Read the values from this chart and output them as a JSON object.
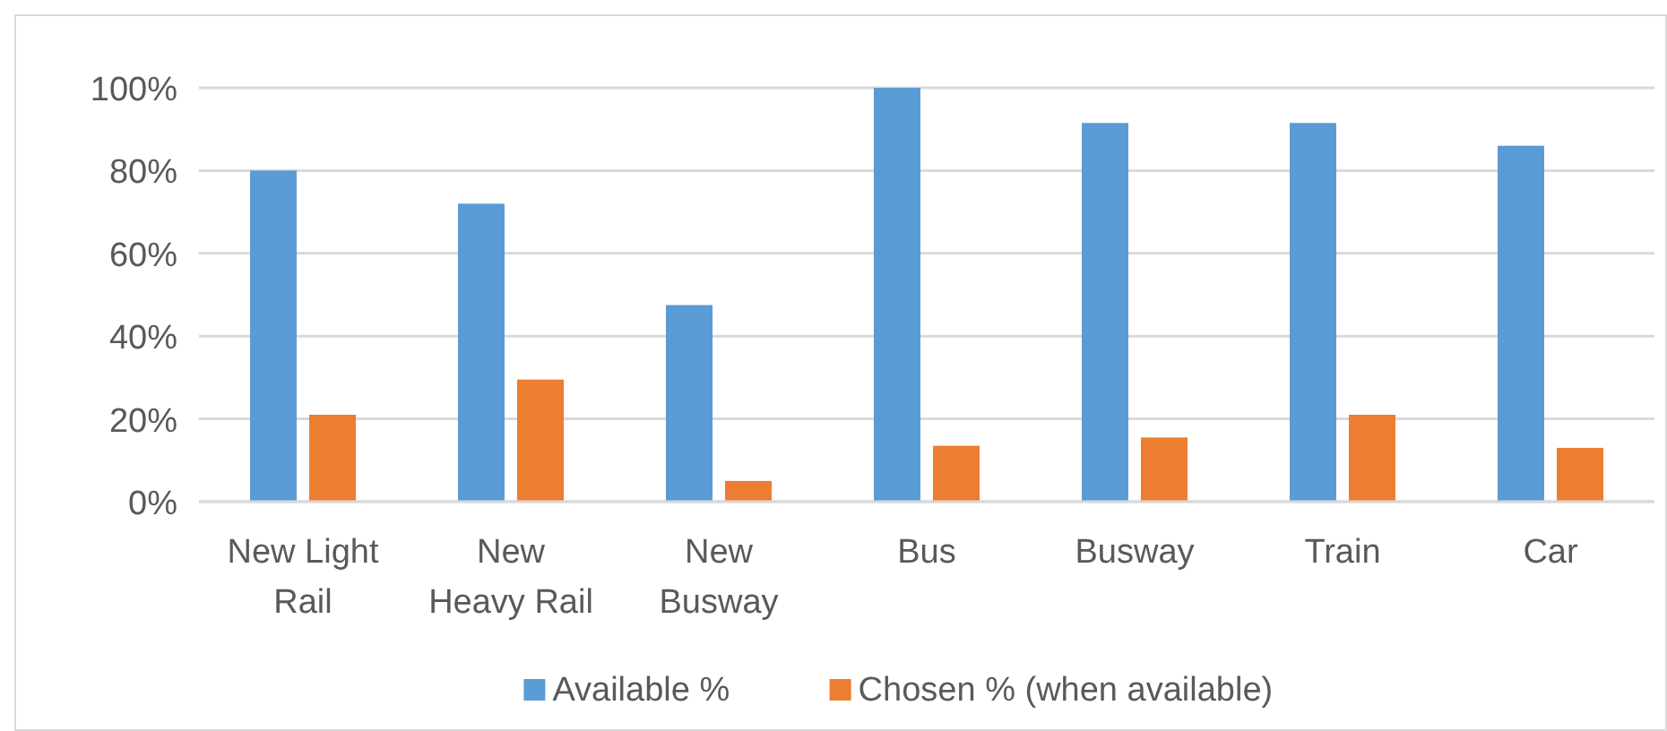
{
  "chart_data": {
    "type": "bar",
    "categories": [
      "New Light\nRail",
      "New\nHeavy Rail",
      "New\nBusway",
      "Bus",
      "Busway",
      "Train",
      "Car"
    ],
    "series": [
      {
        "name": "Available %",
        "color": "#5b9bd5",
        "values": [
          80,
          72,
          47.5,
          100,
          91.5,
          91.5,
          86
        ]
      },
      {
        "name": "Chosen % (when available)",
        "color": "#ed7d31",
        "values": [
          21,
          29.5,
          5,
          13.5,
          15.5,
          21,
          13
        ]
      }
    ],
    "ylim": [
      0,
      100
    ],
    "yticks": [
      {
        "value": 0,
        "label": "0%"
      },
      {
        "value": 20,
        "label": "20%"
      },
      {
        "value": 40,
        "label": "40%"
      },
      {
        "value": 60,
        "label": "60%"
      },
      {
        "value": 80,
        "label": "80%"
      },
      {
        "value": 100,
        "label": "100%"
      }
    ],
    "grid": "y",
    "legend": "bottom"
  }
}
